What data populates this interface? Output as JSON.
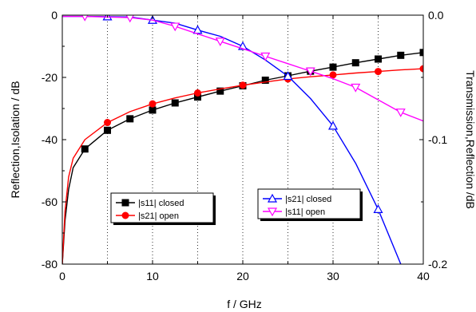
{
  "chart_data": {
    "type": "line",
    "xlabel": "f / GHz",
    "ylabel_left": "Reflection,Isolation / dB",
    "ylabel_right": "Transmission,Reflection /dB",
    "xlim": [
      0,
      40
    ],
    "ylim_left": [
      -80,
      0
    ],
    "ylim_right": [
      -0.2,
      0.0
    ],
    "x_ticks": [
      0,
      10,
      20,
      30,
      40
    ],
    "y_left_ticks": [
      0,
      -20,
      -40,
      -60,
      -80
    ],
    "y_left_tick_labels": [
      "0",
      "-20",
      "-40",
      "-60",
      "-80"
    ],
    "y_right_ticks": [
      0.0,
      -0.1,
      -0.2
    ],
    "y_right_tick_labels": [
      "0.0",
      "-0.1",
      "-0.2"
    ],
    "grid": "vertical dotted at x = 5, 10, 15, 20, 25, 30, 35",
    "series": [
      {
        "name": "|s11| closed",
        "axis": "left",
        "color": "#000000",
        "marker": "square",
        "x": [
          0,
          0.3,
          0.7,
          1.2,
          2.5,
          5,
          7.5,
          10,
          12.5,
          15,
          17.5,
          20,
          22.5,
          25,
          27.5,
          30,
          32.5,
          35,
          37.5,
          40
        ],
        "values": [
          -80,
          -66,
          -56,
          -49,
          -43,
          -37,
          -33.3,
          -30.5,
          -28.2,
          -26.3,
          -24.4,
          -22.7,
          -20.9,
          -19.5,
          -18.0,
          -16.7,
          -15.3,
          -14.1,
          -12.9,
          -12.0
        ],
        "marker_x": [
          2.5,
          5,
          7.5,
          10,
          12.5,
          15,
          17.5,
          20,
          22.5,
          25,
          27.5,
          30,
          32.5,
          35,
          37.5,
          40
        ]
      },
      {
        "name": "|s21| open",
        "axis": "left",
        "color": "#ff0000",
        "marker": "circle",
        "x": [
          0,
          0.3,
          0.7,
          1.2,
          2.5,
          5,
          7.5,
          10,
          12.5,
          15,
          17.5,
          20,
          22.5,
          25,
          27.5,
          30,
          32.5,
          35,
          37.5,
          40
        ],
        "values": [
          -80,
          -63,
          -52,
          -46,
          -40,
          -34.5,
          -31,
          -28.5,
          -26.6,
          -25.0,
          -23.7,
          -22.5,
          -21.5,
          -20.5,
          -19.8,
          -19.2,
          -18.6,
          -18.1,
          -17.6,
          -17.2
        ],
        "marker_x": [
          5,
          10,
          15,
          20,
          25,
          30,
          35,
          40
        ]
      },
      {
        "name": "|s21| closed",
        "axis": "right",
        "color": "#0000ff",
        "marker": "triangle-up",
        "x": [
          0,
          2.5,
          5,
          7.5,
          10,
          12.5,
          15,
          17.5,
          20,
          22.5,
          25,
          27.5,
          30,
          32.5,
          35,
          37.5
        ],
        "values": [
          -0.001,
          -0.001,
          -0.0012,
          -0.0015,
          -0.004,
          -0.0065,
          -0.012,
          -0.017,
          -0.025,
          -0.036,
          -0.049,
          -0.067,
          -0.089,
          -0.119,
          -0.156,
          -0.2
        ],
        "marker_x": [
          5,
          10,
          15,
          20,
          25,
          30,
          35
        ]
      },
      {
        "name": "|s11| open",
        "axis": "right",
        "color": "#ff00ff",
        "marker": "triangle-down",
        "x": [
          0,
          2.5,
          5,
          7.5,
          10,
          12.5,
          15,
          17.5,
          20,
          22.5,
          25,
          27.5,
          30,
          32.5,
          35,
          37.5,
          40
        ],
        "values": [
          -0.001,
          -0.001,
          -0.0015,
          -0.002,
          -0.004,
          -0.009,
          -0.015,
          -0.021,
          -0.027,
          -0.033,
          -0.039,
          -0.045,
          -0.051,
          -0.058,
          -0.068,
          -0.078,
          -0.085
        ],
        "marker_x": [
          2.5,
          7.5,
          12.5,
          17.5,
          22.5,
          27.5,
          32.5,
          37.5
        ]
      }
    ],
    "legends": [
      {
        "entries": [
          "|s11| closed",
          "|s21| open"
        ],
        "placement": "lower-left"
      },
      {
        "entries": [
          "|s21| closed",
          "|s11| open"
        ],
        "placement": "lower-center-right"
      }
    ]
  }
}
